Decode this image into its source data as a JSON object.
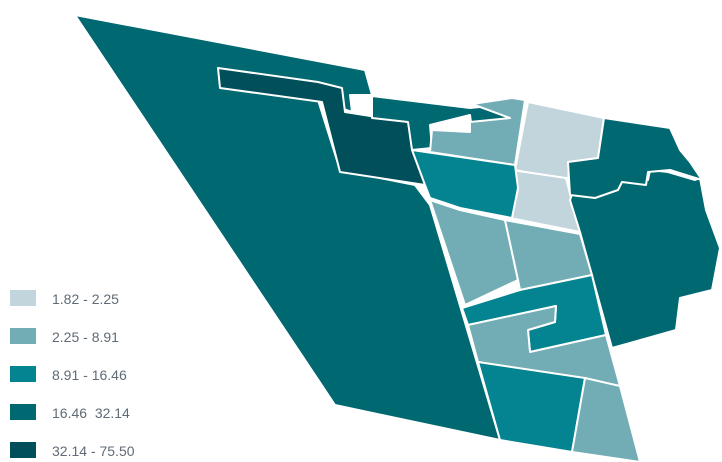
{
  "colors": {
    "class1": "#c3d5dc",
    "class2": "#72adb6",
    "class3": "#038490",
    "class4": "#006870",
    "class5": "#004f5b",
    "border": "#ffffff"
  },
  "legend": {
    "items": [
      {
        "label": "1.82 - 2.25",
        "color": "#c3d5dc"
      },
      {
        "label": "2.25 - 8.91",
        "color": "#72adb6"
      },
      {
        "label": "8.91 - 16.46",
        "color": "#038490"
      },
      {
        "label": "16.46  32.14",
        "color": "#006870"
      },
      {
        "label": "32.14 - 75.50",
        "color": "#004f5b"
      }
    ]
  }
}
